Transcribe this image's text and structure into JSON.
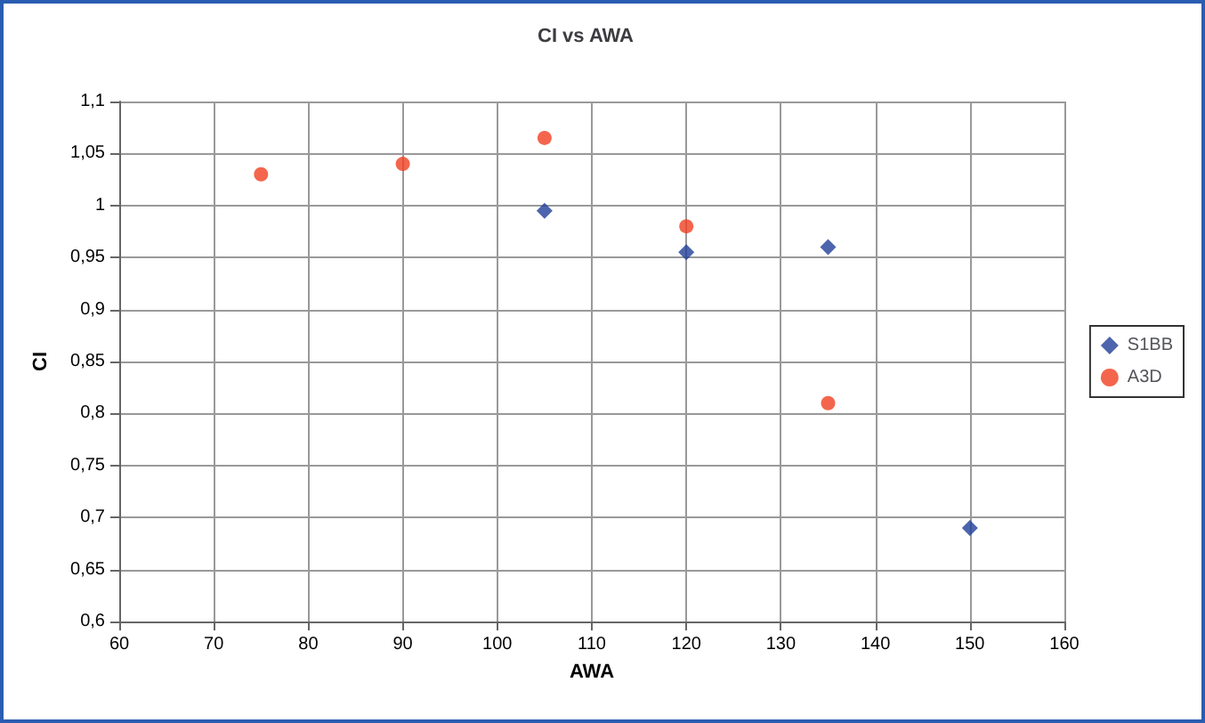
{
  "chart_data": {
    "type": "scatter",
    "title": "CI vs AWA",
    "xlabel": "AWA",
    "ylabel": "CI",
    "series": [
      {
        "name": "S1BB",
        "color": "#1f3f99",
        "marker": "diamond",
        "x": [
          105,
          120,
          135,
          150
        ],
        "values": [
          0.995,
          0.955,
          0.96,
          0.69
        ]
      },
      {
        "name": "A3D",
        "color": "#f04020",
        "marker": "circle",
        "x": [
          75,
          90,
          105,
          120,
          135
        ],
        "values": [
          1.03,
          1.04,
          1.065,
          0.98,
          0.81
        ]
      }
    ],
    "xlim": [
      60,
      160
    ],
    "xticks": [
      60,
      70,
      80,
      90,
      100,
      110,
      120,
      130,
      140,
      150,
      160
    ],
    "ylim": [
      0.6,
      1.1
    ],
    "yticks": [
      {
        "value": 0.6,
        "label": "0,6"
      },
      {
        "value": 0.65,
        "label": "0,65"
      },
      {
        "value": 0.7,
        "label": "0,7"
      },
      {
        "value": 0.75,
        "label": "0,75"
      },
      {
        "value": 0.8,
        "label": "0,8"
      },
      {
        "value": 0.85,
        "label": "0,85"
      },
      {
        "value": 0.9,
        "label": "0,9"
      },
      {
        "value": 0.95,
        "label": "0,95"
      },
      {
        "value": 1,
        "label": "1"
      },
      {
        "value": 1.05,
        "label": "1,05"
      },
      {
        "value": 1.1,
        "label": "1,1"
      }
    ],
    "grid": true,
    "legend": "right"
  }
}
